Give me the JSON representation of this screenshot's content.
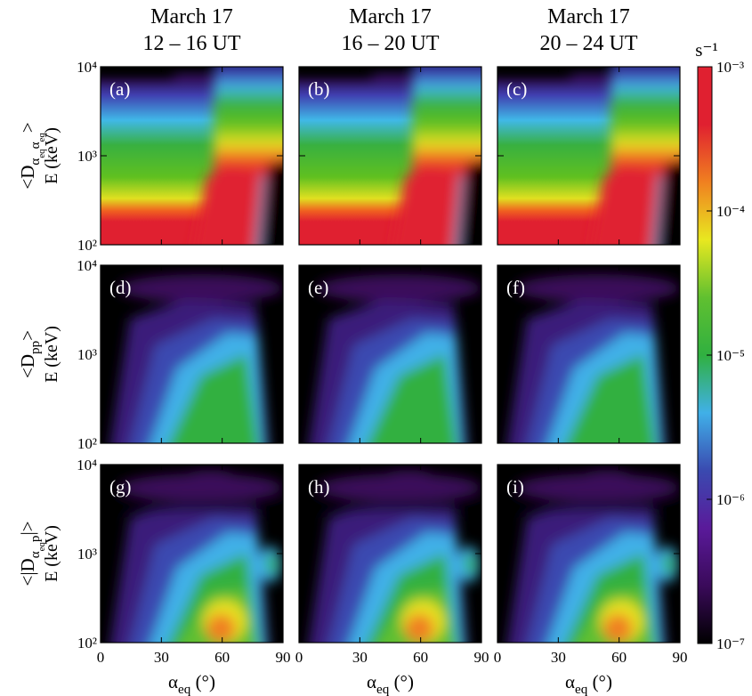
{
  "chart_data": {
    "type": "heatmap_grid",
    "column_titles": [
      [
        "March 17",
        "12 – 16 UT"
      ],
      [
        "March 17",
        "16 – 20 UT"
      ],
      [
        "March 17",
        "20 – 24 UT"
      ]
    ],
    "row_labels": [
      {
        "segments": [
          {
            "text": "<D"
          },
          {
            "text": "α",
            "sub": 1
          },
          {
            "text": "eq",
            "sub": 2
          },
          {
            "text": "α",
            "sub": 1
          },
          {
            "text": "eq",
            "sub": 2
          },
          {
            "text": ">"
          }
        ],
        "unit": "E (keV)"
      },
      {
        "segments": [
          {
            "text": "<D"
          },
          {
            "text": "pp",
            "sub": 1
          },
          {
            "text": ">"
          }
        ],
        "unit": "E (keV)"
      },
      {
        "segments": [
          {
            "text": "<|D"
          },
          {
            "text": "α",
            "sub": 1
          },
          {
            "text": "eq",
            "sub": 2
          },
          {
            "text": "p",
            "sub": 1
          },
          {
            "text": "|>"
          }
        ],
        "unit": "E (keV)"
      }
    ],
    "panel_labels": [
      [
        "(a)",
        "(b)",
        "(c)"
      ],
      [
        "(d)",
        "(e)",
        "(f)"
      ],
      [
        "(g)",
        "(h)",
        "(i)"
      ]
    ],
    "xlabel": [
      {
        "text": "α"
      },
      {
        "text": "eq",
        "sub": 1
      },
      {
        "text": " (°)"
      }
    ],
    "xlim": [
      0,
      90
    ],
    "xticks": [
      0,
      30,
      60,
      90
    ],
    "ylim": [
      100,
      10000
    ],
    "log_y": true,
    "yticks": [
      {
        "value": 100,
        "label": "10²"
      },
      {
        "value": 1000,
        "label": "10³"
      },
      {
        "value": 10000,
        "label": "10⁴"
      }
    ],
    "colorbar": {
      "unit": "s⁻¹",
      "lim": [
        1e-07,
        0.001
      ],
      "log": true,
      "ticks": [
        {
          "value": 1e-07,
          "label": "10⁻⁷"
        },
        {
          "value": 1e-06,
          "label": "10⁻⁶"
        },
        {
          "value": 1e-05,
          "label": "10⁻⁵"
        },
        {
          "value": 0.0001,
          "label": "10⁻⁴"
        },
        {
          "value": 0.001,
          "label": "10⁻³"
        }
      ],
      "colors": [
        "#000000",
        "#3a0a5a",
        "#5a1a9a",
        "#3a4ab0",
        "#40b0e8",
        "#30b040",
        "#60c030",
        "#e8e820",
        "#f08020",
        "#e02030",
        "#e02030"
      ]
    }
  }
}
